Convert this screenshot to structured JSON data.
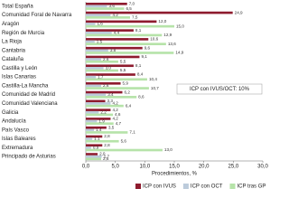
{
  "chart_data": {
    "type": "bar",
    "orientation": "horizontal",
    "categories": [
      "Total España",
      "Comunidad Foral de Navarra",
      "Aragón",
      "Región de Murcia",
      "La Rioja",
      "Cantabria",
      "Cataluña",
      "Castilla y León",
      "Islas Canarias",
      "Castilla-La Mancha",
      "Comunidad de Madrid",
      "Comunidad Valenciana",
      "Galicia",
      "Andalucía",
      "País Vasco",
      "Islas Baleares",
      "Extremadura",
      "Principado de Asturias"
    ],
    "series": [
      {
        "name": "ICP con IVUS",
        "color": "#8e1b2e",
        "values": [
          7.0,
          24.9,
          12.0,
          8.1,
          10.6,
          9.6,
          9.1,
          8.1,
          8.4,
          5.9,
          6.2,
          3.3,
          4.2,
          4.2,
          3.5,
          2.8,
          2.8,
          2.0
        ],
        "value_labels": [
          "7,0",
          "24,9",
          "12,0",
          "8,1",
          "10,6",
          "9,6",
          "9,1",
          "8,1",
          "8,4",
          "5,9",
          "6,2",
          "3,3",
          "4,2",
          "4,2",
          "3,5",
          "2,8",
          "2,8",
          "2,0"
        ]
      },
      {
        "name": "ICP con OCT",
        "color": "#bccbdb",
        "values": [
          3.6,
          4.2,
          1.6,
          4.4,
          1.5,
          3.8,
          2.6,
          3.0,
          1.7,
          2.6,
          3.4,
          4.2,
          2.2,
          1.9,
          1.4,
          1.1,
          0.9,
          2.7
        ],
        "value_labels": [
          "3,6",
          "4,2",
          "1,6",
          "4,4",
          "1,5",
          "3,8",
          "2,6",
          "3,0",
          "1,7",
          "2,6",
          "3,4",
          "4,2",
          "2,2",
          "1,9",
          "1,4",
          "1,1",
          "0,9",
          "2,7"
        ]
      },
      {
        "name": "ICP tras GP",
        "color": "#b6e3a9",
        "values": [
          6.5,
          7.5,
          15.0,
          12.9,
          13.6,
          14.9,
          5.5,
          5.5,
          10.4,
          10.7,
          8.6,
          6.4,
          4.6,
          4.7,
          7.1,
          5.6,
          13.0,
          2.6
        ],
        "value_labels": [
          "6,5",
          "7,5",
          "15,0",
          "12,9",
          "13,6",
          "14,9",
          "5,5",
          "5,5",
          "10,4",
          "10,7",
          "8,6",
          "6,4",
          "4,6",
          "4,7",
          "7,1",
          "5,6",
          "13,0",
          "2,6"
        ]
      }
    ],
    "xlim": [
      0,
      30
    ],
    "xticks": [
      {
        "value": 0,
        "label": "0,0"
      },
      {
        "value": 5,
        "label": "5,0"
      },
      {
        "value": 10,
        "label": "10,0"
      },
      {
        "value": 15,
        "label": "15,0"
      },
      {
        "value": 20,
        "label": "20,0"
      },
      {
        "value": 25,
        "label": "25,0"
      },
      {
        "value": 30,
        "label": "30,0"
      }
    ],
    "xlabel": "Procedimientos, %",
    "annotation": "ICP con IVUS/OCT: 10%",
    "legend": "bottom"
  }
}
